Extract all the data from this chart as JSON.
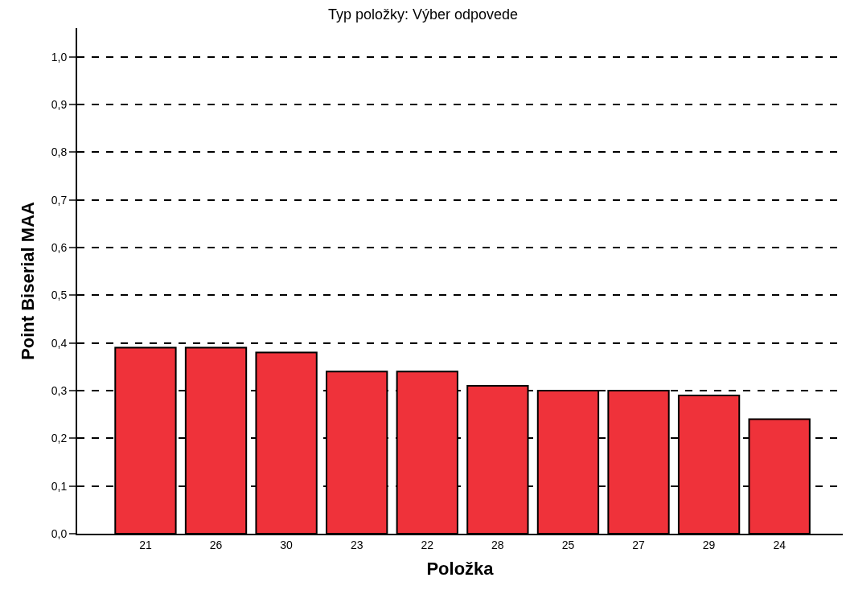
{
  "chart_data": {
    "type": "bar",
    "title": "Typ položky: Výber odpovede",
    "xlabel": "Položka",
    "ylabel": "Point Biserial MAA",
    "categories": [
      "21",
      "26",
      "30",
      "23",
      "22",
      "28",
      "25",
      "27",
      "29",
      "24"
    ],
    "values": [
      0.39,
      0.39,
      0.38,
      0.34,
      0.34,
      0.31,
      0.3,
      0.3,
      0.29,
      0.24
    ],
    "color": "#ef323a",
    "ylim": [
      0,
      1.06
    ],
    "yticks": [
      {
        "value": 0,
        "label": "0,0"
      },
      {
        "value": 0.1,
        "label": "0,1"
      },
      {
        "value": 0.2,
        "label": "0,2"
      },
      {
        "value": 0.3,
        "label": "0,3"
      },
      {
        "value": 0.4,
        "label": "0,4"
      },
      {
        "value": 0.5,
        "label": "0,5"
      },
      {
        "value": 0.6,
        "label": "0,6"
      },
      {
        "value": 0.7,
        "label": "0,7"
      },
      {
        "value": 0.8,
        "label": "0,8"
      },
      {
        "value": 0.9,
        "label": "0,9"
      },
      {
        "value": 1.0,
        "label": "1,0"
      }
    ],
    "grid": "y"
  }
}
